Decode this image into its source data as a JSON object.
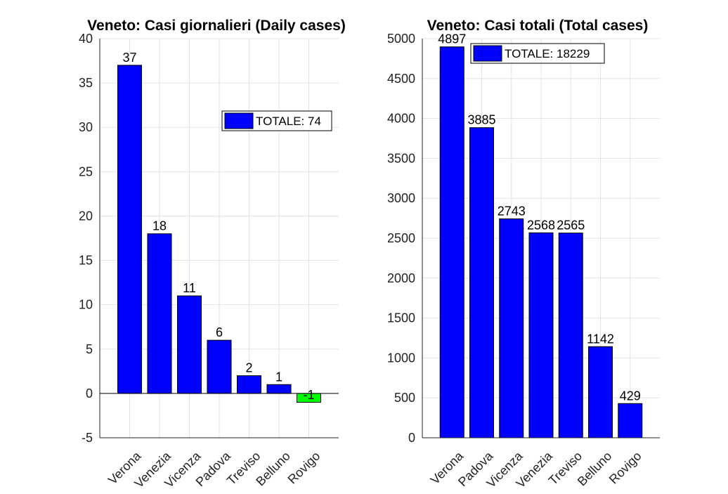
{
  "chart_data": [
    {
      "type": "bar",
      "title": "Veneto: Casi giornalieri (Daily cases)",
      "categories": [
        "Verona",
        "Venezia",
        "Vicenza",
        "Padova",
        "Treviso",
        "Belluno",
        "Rovigo"
      ],
      "values": [
        37,
        18,
        11,
        6,
        2,
        1,
        -1
      ],
      "data_labels": [
        "37",
        "18",
        "11",
        "6",
        "2",
        "1",
        "-1"
      ],
      "yticks": [
        "-5",
        "0",
        "5",
        "10",
        "15",
        "20",
        "25",
        "30",
        "35",
        "40"
      ],
      "ylim": [
        -5,
        40
      ],
      "legend": "TOTALE: 74",
      "legend_position": "upper-right",
      "grid": true,
      "colors": {
        "positive": "#0000ff",
        "negative": "#00ff00"
      },
      "xlabel": "",
      "ylabel": ""
    },
    {
      "type": "bar",
      "title": "Veneto: Casi totali (Total cases)",
      "categories": [
        "Verona",
        "Padova",
        "Vicenza",
        "Venezia",
        "Treviso",
        "Belluno",
        "Rovigo"
      ],
      "values": [
        4897,
        3885,
        2743,
        2568,
        2565,
        1142,
        429
      ],
      "data_labels": [
        "4897",
        "3885",
        "2743",
        "2568",
        "2565",
        "1142",
        "429"
      ],
      "yticks": [
        "0",
        "500",
        "1000",
        "1500",
        "2000",
        "2500",
        "3000",
        "3500",
        "4000",
        "4500",
        "5000"
      ],
      "ylim": [
        0,
        5000
      ],
      "legend": "TOTALE: 18229",
      "legend_position": "upper-left",
      "grid": true,
      "colors": {
        "positive": "#0000ff",
        "negative": "#00ff00"
      },
      "xlabel": "",
      "ylabel": ""
    }
  ]
}
